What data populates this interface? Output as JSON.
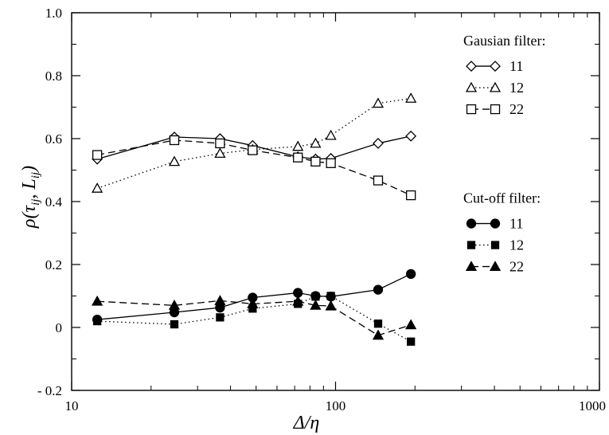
{
  "chart_data": {
    "type": "line",
    "x_scale": "log",
    "xlim": [
      10,
      1000
    ],
    "ylim": [
      -0.2,
      1.0
    ],
    "xlabel": "Δ/η",
    "ylabel_parts": {
      "rho": "ρ(",
      "tau": "τ",
      "tau_sub": "ij",
      "sep": ", ",
      "L": "L",
      "L_sub": "ij",
      "close": ")"
    },
    "x_ticks": [
      10,
      100,
      1000
    ],
    "x_tick_labels": [
      "10",
      "100",
      "1000"
    ],
    "y_ticks": [
      -0.2,
      0,
      0.2,
      0.4,
      0.6,
      0.8,
      1.0
    ],
    "y_tick_labels": [
      "- 0.2",
      "0",
      "0.2",
      "0.4",
      "0.6",
      "0.8",
      "1.0"
    ],
    "grid": false,
    "legend_groups": [
      {
        "title": "Gausian filter:",
        "series": [
          0,
          1,
          2
        ]
      },
      {
        "title": "Cut-off filter:",
        "series": [
          3,
          4,
          5
        ]
      }
    ],
    "series": [
      {
        "name": "11",
        "group": "gaussian",
        "marker": "diamond-open",
        "dash": "solid",
        "x": [
          12.5,
          24.5,
          36.5,
          48.5,
          72,
          84,
          96,
          145,
          193
        ],
        "y": [
          0.535,
          0.605,
          0.6,
          0.578,
          0.542,
          0.535,
          0.537,
          0.585,
          0.608
        ]
      },
      {
        "name": "12",
        "group": "gaussian",
        "marker": "triangle-open",
        "dash": "dotted",
        "x": [
          12.5,
          24.5,
          36.5,
          48.5,
          72,
          84,
          96,
          145,
          193
        ],
        "y": [
          0.442,
          0.527,
          0.553,
          0.565,
          0.575,
          0.585,
          0.61,
          0.712,
          0.728
        ]
      },
      {
        "name": "22",
        "group": "gaussian",
        "marker": "square-open",
        "dash": "dashed",
        "x": [
          12.5,
          24.5,
          36.5,
          48.5,
          72,
          84,
          96,
          145,
          193
        ],
        "y": [
          0.548,
          0.595,
          0.585,
          0.563,
          0.54,
          0.527,
          0.522,
          0.467,
          0.42
        ]
      },
      {
        "name": "11",
        "group": "cutoff",
        "marker": "circle-filled",
        "dash": "solid",
        "x": [
          12.5,
          24.5,
          36.5,
          48.5,
          72,
          84,
          96,
          145,
          193
        ],
        "y": [
          0.025,
          0.048,
          0.063,
          0.095,
          0.11,
          0.1,
          0.098,
          0.12,
          0.17
        ]
      },
      {
        "name": "12",
        "group": "cutoff",
        "marker": "square-filled",
        "dash": "dotted",
        "x": [
          12.5,
          24.5,
          36.5,
          48.5,
          72,
          84,
          96,
          145,
          193
        ],
        "y": [
          0.02,
          0.01,
          0.032,
          0.06,
          0.075,
          0.098,
          0.1,
          0.012,
          -0.045
        ]
      },
      {
        "name": "22",
        "group": "cutoff",
        "marker": "triangle-filled",
        "dash": "dashed",
        "x": [
          12.5,
          24.5,
          36.5,
          48.5,
          72,
          84,
          96,
          145,
          193
        ],
        "y": [
          0.083,
          0.07,
          0.085,
          0.075,
          0.083,
          0.07,
          0.068,
          -0.025,
          0.008
        ]
      }
    ]
  }
}
